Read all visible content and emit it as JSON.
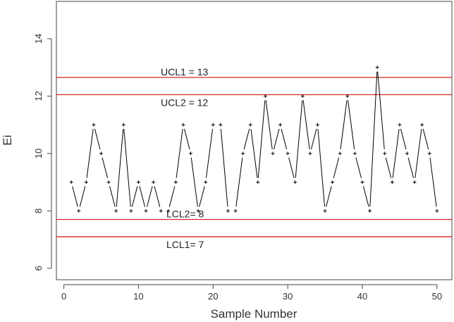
{
  "chart_data": {
    "type": "line",
    "title": "",
    "xlabel": "Sample Number",
    "ylabel": "Ei",
    "xlim": [
      -1,
      52
    ],
    "ylim": [
      5.6,
      15.3
    ],
    "xticks": [
      0,
      10,
      20,
      30,
      40,
      50
    ],
    "yticks": [
      6,
      8,
      10,
      12,
      14
    ],
    "grid": false,
    "series": [
      {
        "marker": "+",
        "x": [
          1,
          2,
          3,
          4,
          5,
          6,
          7,
          8,
          9,
          10,
          11,
          12,
          13,
          14,
          15,
          16,
          17,
          18,
          19,
          20,
          21,
          22,
          23,
          24,
          25,
          26,
          27,
          28,
          29,
          30,
          31,
          32,
          33,
          34,
          35,
          36,
          37,
          38,
          39,
          40,
          41,
          42,
          43,
          44,
          45,
          46,
          47,
          48,
          49,
          50
        ],
        "values": [
          9,
          8,
          9,
          11,
          10,
          9,
          8,
          11,
          8,
          9,
          8,
          9,
          8,
          8,
          9,
          11,
          10,
          8,
          9,
          11,
          11,
          8,
          8,
          10,
          11,
          9,
          12,
          10,
          11,
          10,
          9,
          12,
          10,
          11,
          8,
          9,
          10,
          12,
          10,
          9,
          8,
          13,
          10,
          9,
          11,
          10,
          9,
          11,
          10,
          8
        ],
        "color": "#000000"
      }
    ],
    "reference_lines": [
      {
        "label": "UCL1 = 13",
        "y": 12.65,
        "color": "#d62828"
      },
      {
        "label": "UCL2 = 12",
        "y": 12.05,
        "color": "#d62828"
      },
      {
        "label": "LCL2= 8",
        "y": 7.7,
        "color": "#d62828"
      },
      {
        "label": "LCL1= 7",
        "y": 7.1,
        "color": "#d62828"
      }
    ]
  }
}
